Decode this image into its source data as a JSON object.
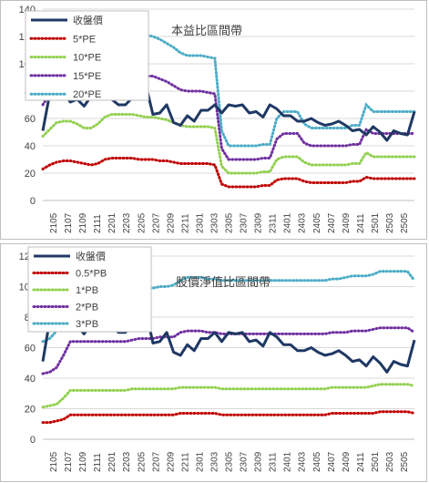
{
  "chart_data": [
    {
      "type": "line",
      "title": "本益比區間帶",
      "ylim": [
        0,
        140
      ],
      "yticks": [
        0,
        20,
        40,
        60,
        80,
        100,
        120,
        140
      ],
      "xticks": [
        "2105",
        "2107",
        "2109",
        "2111",
        "2201",
        "2203",
        "2205",
        "2207",
        "2209",
        "2211",
        "2301",
        "2303",
        "2305",
        "2307",
        "2309",
        "2311",
        "2401",
        "2403",
        "2405",
        "2407",
        "2409",
        "2411",
        "2501",
        "2503",
        "2505"
      ],
      "legend_position": "top-left",
      "grid": "horizontal",
      "series": [
        {
          "name": "收盤價",
          "color": "#1f3864",
          "style": "solid",
          "values": [
            51,
            78,
            84,
            79,
            72,
            74,
            69,
            76,
            75,
            74,
            74,
            70,
            70,
            75,
            77,
            84,
            63,
            64,
            70,
            57,
            55,
            62,
            58,
            66,
            66,
            70,
            64,
            70,
            69,
            70,
            64,
            65,
            61,
            70,
            67,
            62,
            62,
            58,
            58,
            60,
            57,
            55,
            56,
            58,
            55,
            51,
            52,
            48,
            54,
            50,
            44,
            51,
            49,
            48,
            65
          ]
        },
        {
          "name": "5*PE",
          "color": "#c00000",
          "style": "dotted",
          "values": [
            23,
            26,
            28,
            29,
            29,
            28,
            27,
            26,
            27,
            30,
            31,
            31,
            31,
            31,
            30,
            30,
            30,
            29,
            29,
            28,
            27,
            27,
            27,
            27,
            27,
            26,
            12,
            10,
            10,
            10,
            10,
            10,
            11,
            11,
            15,
            16,
            16,
            16,
            14,
            13,
            13,
            13,
            13,
            13,
            13,
            14,
            14,
            17,
            16,
            16,
            16,
            16,
            16,
            16,
            16
          ]
        },
        {
          "name": "10*PE",
          "color": "#92d050",
          "style": "dotted",
          "values": [
            47,
            52,
            57,
            58,
            58,
            56,
            53,
            53,
            56,
            61,
            63,
            63,
            63,
            63,
            62,
            61,
            61,
            60,
            59,
            57,
            55,
            54,
            54,
            54,
            54,
            53,
            25,
            20,
            20,
            20,
            20,
            20,
            21,
            21,
            30,
            32,
            32,
            32,
            28,
            26,
            26,
            26,
            26,
            26,
            26,
            27,
            27,
            35,
            32,
            32,
            32,
            32,
            32,
            32,
            32
          ]
        },
        {
          "name": "15*PE",
          "color": "#7030a0",
          "style": "dotted",
          "values": [
            70,
            78,
            86,
            88,
            88,
            85,
            81,
            81,
            84,
            91,
            93,
            93,
            93,
            93,
            92,
            91,
            91,
            89,
            87,
            84,
            81,
            80,
            80,
            80,
            79,
            78,
            38,
            30,
            30,
            30,
            30,
            30,
            31,
            31,
            45,
            49,
            49,
            49,
            42,
            40,
            40,
            40,
            40,
            40,
            40,
            41,
            41,
            52,
            49,
            49,
            49,
            49,
            49,
            49,
            49
          ]
        },
        {
          "name": "20*PE",
          "color": "#4bacc6",
          "style": "dotted",
          "values": [
            94,
            105,
            114,
            117,
            117,
            114,
            108,
            108,
            112,
            121,
            124,
            125,
            125,
            124,
            122,
            121,
            120,
            118,
            115,
            112,
            108,
            106,
            106,
            106,
            105,
            104,
            51,
            40,
            40,
            40,
            40,
            40,
            41,
            41,
            60,
            65,
            65,
            65,
            56,
            53,
            53,
            53,
            53,
            53,
            53,
            55,
            55,
            70,
            65,
            65,
            65,
            65,
            65,
            65,
            65
          ]
        }
      ]
    },
    {
      "type": "line",
      "title": "股價淨值比區間帶",
      "ylim": [
        0,
        120
      ],
      "yticks": [
        0,
        20,
        40,
        60,
        80,
        100,
        120
      ],
      "xticks": [
        "2105",
        "2107",
        "2109",
        "2111",
        "2201",
        "2203",
        "2205",
        "2207",
        "2209",
        "2211",
        "2301",
        "2303",
        "2305",
        "2307",
        "2309",
        "2311",
        "2401",
        "2403",
        "2405",
        "2407",
        "2409",
        "2411",
        "2501",
        "2503",
        "2505"
      ],
      "legend_position": "top-left",
      "grid": "horizontal",
      "series": [
        {
          "name": "收盤價",
          "color": "#1f3864",
          "style": "solid",
          "values": [
            51,
            78,
            84,
            79,
            72,
            74,
            69,
            76,
            75,
            74,
            74,
            70,
            70,
            75,
            77,
            84,
            63,
            64,
            70,
            57,
            55,
            62,
            58,
            66,
            66,
            70,
            64,
            70,
            69,
            70,
            64,
            65,
            61,
            70,
            67,
            62,
            62,
            58,
            58,
            60,
            57,
            55,
            56,
            58,
            55,
            51,
            52,
            48,
            54,
            50,
            44,
            51,
            49,
            48,
            65
          ]
        },
        {
          "name": "0.5*PB",
          "color": "#c00000",
          "style": "dotted",
          "values": [
            11,
            11,
            12,
            13,
            16,
            16,
            16,
            16,
            16,
            16,
            16,
            16,
            16,
            16,
            16,
            16,
            16,
            16,
            16,
            16,
            17,
            17,
            17,
            17,
            17,
            17,
            16,
            16,
            16,
            16,
            16,
            16,
            16,
            16,
            16,
            16,
            16,
            16,
            16,
            16,
            16,
            16,
            17,
            17,
            17,
            17,
            17,
            17,
            17,
            18,
            18,
            18,
            18,
            18,
            17
          ]
        },
        {
          "name": "1*PB",
          "color": "#92d050",
          "style": "dotted",
          "values": [
            21,
            22,
            23,
            27,
            32,
            32,
            32,
            32,
            32,
            32,
            32,
            32,
            32,
            33,
            33,
            33,
            33,
            33,
            33,
            33,
            34,
            34,
            34,
            34,
            34,
            34,
            33,
            33,
            33,
            33,
            33,
            33,
            33,
            33,
            33,
            33,
            33,
            33,
            33,
            33,
            33,
            33,
            34,
            34,
            34,
            34,
            34,
            34,
            35,
            36,
            36,
            36,
            36,
            36,
            35
          ]
        },
        {
          "name": "2*PB",
          "color": "#7030a0",
          "style": "dotted",
          "values": [
            43,
            44,
            47,
            55,
            64,
            64,
            64,
            64,
            64,
            64,
            64,
            64,
            64,
            65,
            66,
            66,
            66,
            67,
            67,
            67,
            70,
            71,
            71,
            71,
            70,
            70,
            69,
            69,
            69,
            69,
            69,
            69,
            69,
            69,
            69,
            69,
            69,
            69,
            69,
            69,
            69,
            69,
            70,
            70,
            70,
            71,
            71,
            71,
            72,
            73,
            73,
            73,
            73,
            73,
            70
          ]
        },
        {
          "name": "3*PB",
          "color": "#4bacc6",
          "style": "dotted",
          "values": [
            64,
            66,
            71,
            82,
            96,
            96,
            96,
            96,
            96,
            96,
            96,
            97,
            97,
            98,
            99,
            99,
            99,
            100,
            100,
            101,
            104,
            106,
            106,
            106,
            105,
            105,
            104,
            104,
            104,
            104,
            104,
            104,
            104,
            104,
            104,
            104,
            104,
            104,
            104,
            104,
            104,
            104,
            105,
            105,
            106,
            107,
            107,
            107,
            108,
            110,
            110,
            110,
            110,
            110,
            104
          ]
        }
      ]
    }
  ]
}
